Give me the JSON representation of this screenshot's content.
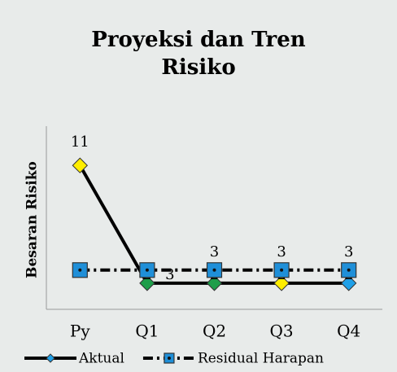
{
  "chart_data": {
    "type": "line",
    "title": "Proyeksi dan Tren Risiko",
    "ylabel": "Besaran Risiko",
    "categories": [
      "Py",
      "Q1",
      "Q2",
      "Q3",
      "Q4"
    ],
    "ylim": [
      0,
      14
    ],
    "legend": "bottom",
    "series": [
      {
        "name": "Aktual",
        "color": "#000000",
        "dash": false,
        "marker": "diamond",
        "marker_colors": [
          "#ffee00",
          "#1e9e4a",
          "#1e9e4a",
          "#ffee00",
          "#1fa0e8"
        ],
        "values": [
          11,
          2,
          2,
          2,
          2
        ],
        "data_labels": [
          true,
          true,
          true,
          true,
          true
        ]
      },
      {
        "name": "Residual Harapan",
        "color": "#000000",
        "dash": true,
        "marker": "square",
        "marker_colors": [
          "#1f8fd8",
          "#1f8fd8",
          "#1f8fd8",
          "#1f8fd8",
          "#1f8fd8"
        ],
        "values": [
          3,
          3,
          3,
          3,
          3
        ],
        "data_labels": [
          false,
          true,
          true,
          true,
          true
        ]
      }
    ]
  }
}
